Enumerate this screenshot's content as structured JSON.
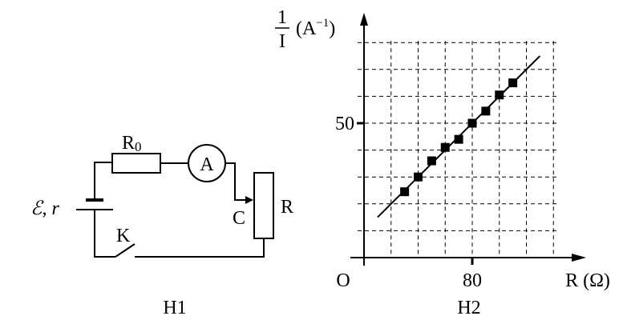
{
  "circuit": {
    "caption": "H1",
    "labels": {
      "source": "ℰ, r",
      "fixed_resistor": "R",
      "fixed_resistor_sub": "0",
      "ammeter": "A",
      "rheostat": "R",
      "slider": "C",
      "switch": "K"
    }
  },
  "chart_data": {
    "type": "scatter",
    "caption": "H2",
    "ylabel_num": "1",
    "ylabel_den": "I",
    "ylabel_unit": "(A",
    "ylabel_exp": "−1",
    "ylabel_close": ")",
    "xlabel": "R (Ω)",
    "origin_label": "O",
    "xticks": [
      {
        "value": 80,
        "label": "80"
      }
    ],
    "yticks": [
      {
        "value": 50,
        "label": "50"
      }
    ],
    "xlim": [
      0,
      140
    ],
    "ylim": [
      0,
      80
    ],
    "x_grid_step": 20,
    "y_grid_step": 10,
    "grid": true,
    "points": [
      {
        "x": 30,
        "y": 24.5
      },
      {
        "x": 40,
        "y": 30
      },
      {
        "x": 50,
        "y": 36
      },
      {
        "x": 60,
        "y": 41
      },
      {
        "x": 70,
        "y": 44
      },
      {
        "x": 80,
        "y": 50
      },
      {
        "x": 90,
        "y": 54.5
      },
      {
        "x": 100,
        "y": 60.5
      },
      {
        "x": 110,
        "y": 65
      }
    ],
    "fit_line": {
      "x_start": 10,
      "x_end": 130,
      "intercept": 10,
      "slope": 0.5
    }
  }
}
